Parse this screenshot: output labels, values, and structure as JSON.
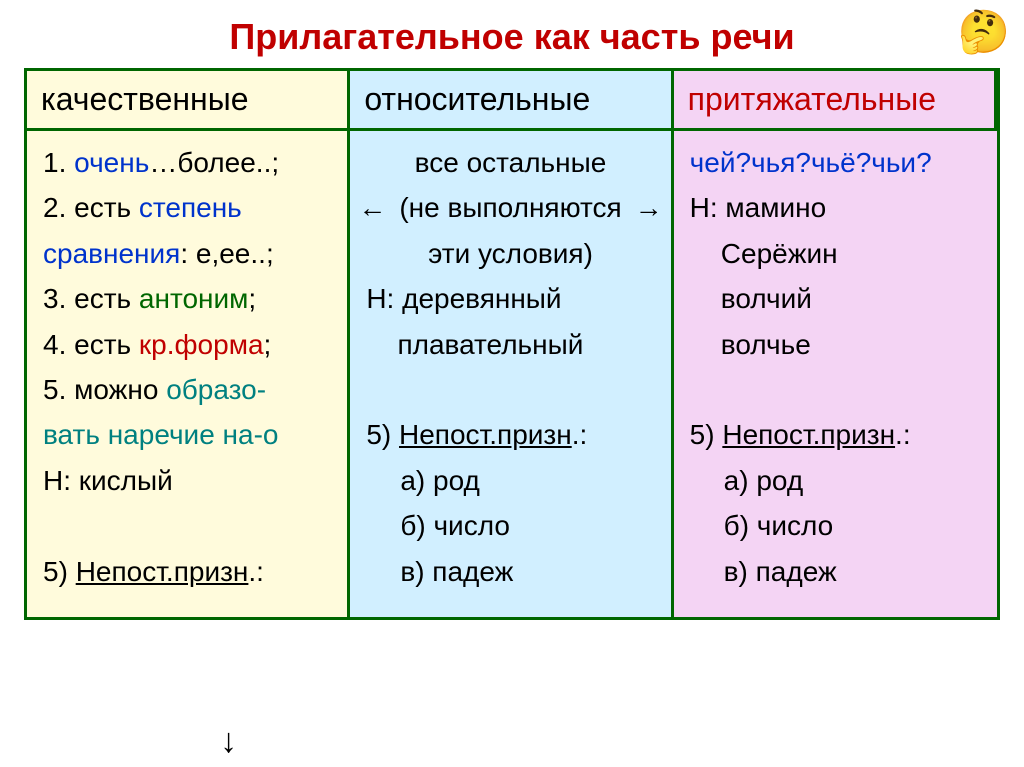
{
  "title": "Прилагательное как часть речи",
  "title_color": "#c00000",
  "columns": {
    "col1": {
      "header": "качественные",
      "header_color": "#000000",
      "bg": "#fffbdc",
      "border": "#006600",
      "lines": [
        {
          "pre": "1. ",
          "mid": "очень",
          "mid_color": "#0033cc",
          "post": "…более..;"
        },
        {
          "pre": "2. есть ",
          "mid": "степень",
          "mid_color": "#0033cc",
          "post": ""
        },
        {
          "pre": "",
          "mid": "сравнения",
          "mid_color": "#0033cc",
          "post": ": е,ее..;"
        },
        {
          "pre": "3. есть ",
          "mid": "антоним",
          "mid_color": "#006600",
          "post": ";"
        },
        {
          "pre": "4. есть ",
          "mid": "кр.форма",
          "mid_color": "#c00000",
          "post": ";"
        },
        {
          "pre": "5. можно ",
          "mid": "образо-",
          "mid_color": "#008080",
          "post": ""
        },
        {
          "pre": "",
          "mid": "вать наречие на-о",
          "mid_color": "#008080",
          "post": ""
        },
        {
          "pre": "Н: кислый",
          "mid": "",
          "mid_color": "",
          "post": ""
        },
        {
          "pre": " ",
          "mid": "",
          "mid_color": "",
          "post": ""
        },
        {
          "pre": "5) ",
          "mid": "Непост.призн",
          "mid_color": "#000000",
          "post": ".:",
          "u": true
        }
      ]
    },
    "col2": {
      "header": "относительные",
      "header_color": "#000000",
      "bg": "#d1efff",
      "border": "#006600",
      "lines_top": [
        "все остальные",
        "(не выполняются",
        "эти условия)"
      ],
      "arrows": "←                 →",
      "lines_mid": [
        "Н: деревянный",
        "    плавательный",
        " "
      ],
      "nonperm_label": "Непост.призн",
      "nonperm_pre": "5) ",
      "nonperm_post": ".:",
      "items": [
        "а) род",
        "б) число",
        "в) падеж"
      ]
    },
    "col3": {
      "header": "притяжательные",
      "header_color": "#c00000",
      "bg": "#f4d4f4",
      "border": "#006600",
      "question": "чей?чья?чьё?чьи?",
      "question_color": "#0033cc",
      "lines": [
        "Н: мамино",
        "    Серёжин",
        "    волчий",
        "    волчье",
        " "
      ],
      "nonperm_label": "Непост.призн",
      "nonperm_pre": "5) ",
      "nonperm_post": ".:",
      "items": [
        "а) род",
        "б) число",
        "в) падеж"
      ]
    }
  },
  "mascot": "🤔"
}
